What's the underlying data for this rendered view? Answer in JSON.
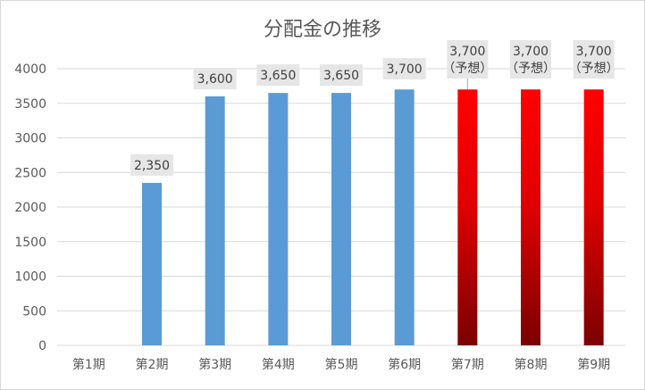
{
  "chart_data": {
    "type": "bar",
    "title": "分配金の推移",
    "categories": [
      "第1期",
      "第2期",
      "第3期",
      "第4期",
      "第5期",
      "第6期",
      "第7期",
      "第8期",
      "第9期"
    ],
    "values": [
      0,
      2350,
      3600,
      3650,
      3650,
      3700,
      3700,
      3700,
      3700
    ],
    "data_labels": [
      "",
      "2,350",
      "3,600",
      "3,650",
      "3,650",
      "3,700",
      "3,700\n（予想）",
      "3,700\n（予想）",
      "3,700\n（予想）"
    ],
    "ylim": [
      0,
      4000
    ],
    "yticks": [
      0,
      500,
      1000,
      1500,
      2000,
      2500,
      3000,
      3500,
      4000
    ],
    "grid": true,
    "xlabel": "",
    "ylabel": "",
    "colors": {
      "actual": "#5b9bd5",
      "forecast_top": "#ff0000",
      "forecast_bottom": "#7a0000",
      "grid": "#d9d9d9",
      "label_bg": "#e7e6e6"
    }
  }
}
